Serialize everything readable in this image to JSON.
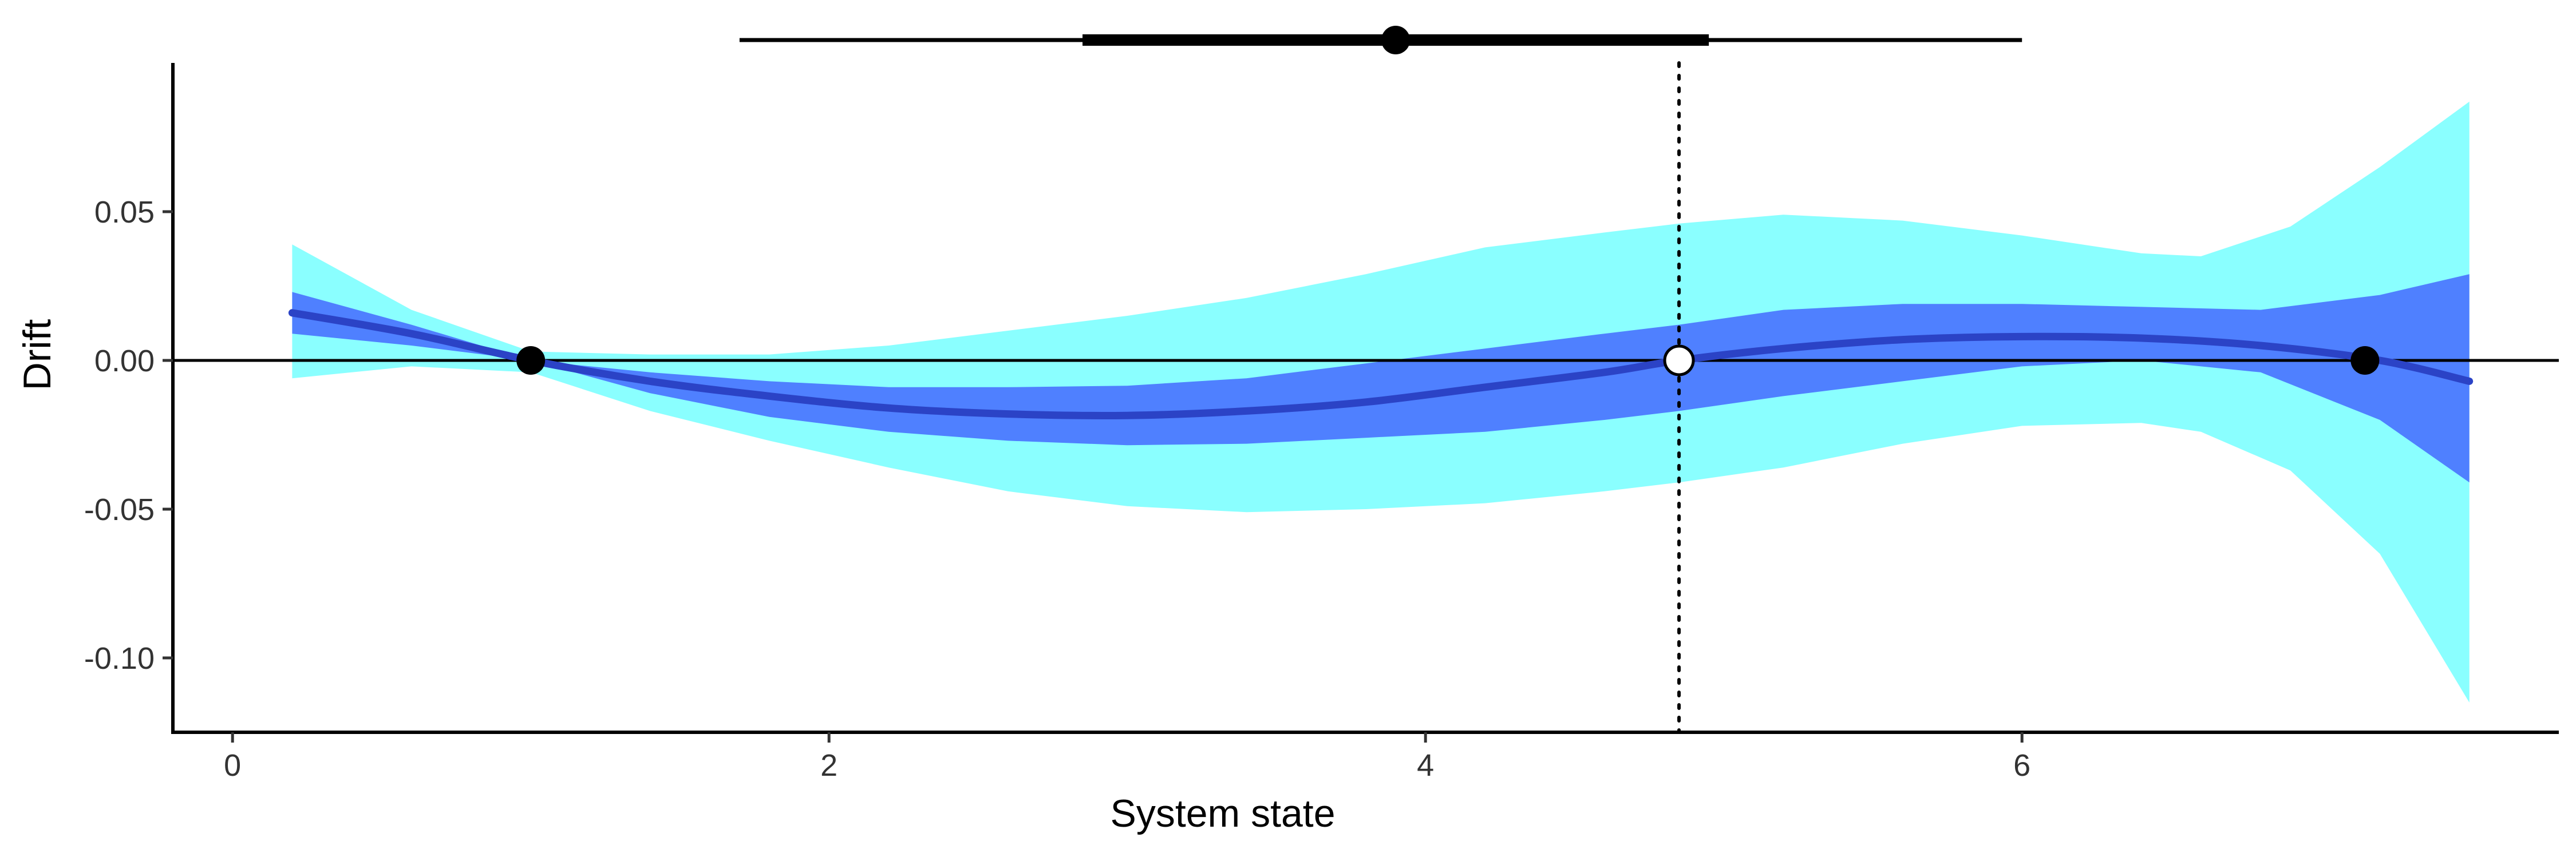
{
  "chart_data": {
    "type": "line",
    "xlabel": "System state",
    "ylabel": "Drift",
    "xlim": [
      -0.2,
      7.8
    ],
    "ylim": [
      -0.125,
      0.1
    ],
    "x_ticks": [
      0,
      2,
      4,
      6
    ],
    "x_tick_labels": [
      "0",
      "2",
      "4",
      "6"
    ],
    "y_ticks": [
      0.05,
      0.0,
      -0.05,
      -0.1
    ],
    "y_tick_labels": [
      "0.05",
      "0.00",
      "-0.05",
      "-0.10"
    ],
    "grid": false,
    "legend": "none",
    "colors": {
      "outer_band": "#8affff",
      "inner_band": "#4f80ff",
      "mean_line": "#2b43c6",
      "reference": "#000000"
    },
    "series": [
      {
        "role": "mean",
        "x": [
          0.2,
          0.6,
          1.0,
          1.4,
          1.8,
          2.2,
          2.6,
          3.0,
          3.4,
          3.8,
          4.2,
          4.6,
          4.85,
          5.2,
          5.6,
          6.0,
          6.4,
          6.8,
          7.2,
          7.5
        ],
        "y": [
          0.016,
          0.009,
          0.0,
          -0.007,
          -0.012,
          -0.016,
          -0.018,
          -0.0185,
          -0.017,
          -0.014,
          -0.009,
          -0.004,
          0.0,
          0.004,
          0.007,
          0.008,
          0.0075,
          0.005,
          0.0,
          -0.007
        ]
      },
      {
        "role": "inner_band",
        "x": [
          0.2,
          0.6,
          1.0,
          1.4,
          1.8,
          2.2,
          2.6,
          3.0,
          3.4,
          3.8,
          4.2,
          4.6,
          4.85,
          5.2,
          5.6,
          6.0,
          6.4,
          6.8,
          7.2,
          7.5
        ],
        "lower": [
          0.009,
          0.005,
          0.0,
          -0.011,
          -0.019,
          -0.024,
          -0.027,
          -0.0285,
          -0.028,
          -0.026,
          -0.024,
          -0.02,
          -0.017,
          -0.012,
          -0.007,
          -0.002,
          0.0,
          -0.004,
          -0.02,
          -0.041
        ],
        "upper": [
          0.023,
          0.012,
          0.0,
          -0.004,
          -0.007,
          -0.009,
          -0.009,
          -0.0085,
          -0.006,
          -0.001,
          0.004,
          0.009,
          0.012,
          0.017,
          0.019,
          0.019,
          0.018,
          0.017,
          0.022,
          0.029
        ]
      },
      {
        "role": "outer_band",
        "x": [
          0.2,
          0.6,
          1.0,
          1.4,
          1.8,
          2.2,
          2.6,
          3.0,
          3.4,
          3.8,
          4.2,
          4.6,
          4.85,
          5.2,
          5.6,
          6.0,
          6.4,
          6.6,
          6.9,
          7.2,
          7.5
        ],
        "lower": [
          -0.006,
          -0.002,
          -0.004,
          -0.017,
          -0.027,
          -0.036,
          -0.044,
          -0.049,
          -0.051,
          -0.05,
          -0.048,
          -0.044,
          -0.041,
          -0.036,
          -0.028,
          -0.022,
          -0.021,
          -0.024,
          -0.037,
          -0.065,
          -0.115
        ],
        "upper": [
          0.039,
          0.017,
          0.003,
          0.002,
          0.002,
          0.005,
          0.01,
          0.015,
          0.021,
          0.029,
          0.038,
          0.043,
          0.046,
          0.049,
          0.047,
          0.042,
          0.036,
          0.035,
          0.045,
          0.065,
          0.087
        ]
      }
    ],
    "reference_lines": {
      "hline_y": 0.0,
      "vline_x": 4.85
    },
    "fixed_points": [
      {
        "x": 1.0,
        "y": 0.0,
        "stability": "stable"
      },
      {
        "x": 4.85,
        "y": 0.0,
        "stability": "unstable"
      },
      {
        "x": 7.15,
        "y": 0.0,
        "stability": "stable"
      }
    ],
    "interval_summary": {
      "point": 3.9,
      "inner": [
        2.85,
        4.95
      ],
      "outer": [
        1.7,
        6.0
      ]
    }
  }
}
